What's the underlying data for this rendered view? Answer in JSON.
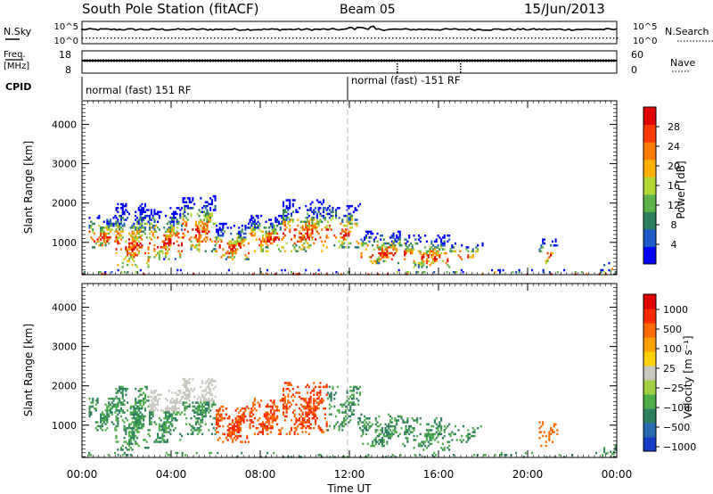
{
  "header": {
    "station": "South Pole Station (fitACF)",
    "beam": "Beam 05",
    "date": "15/Jun/2013"
  },
  "aux_panels": {
    "nsky_label": "N.Sky",
    "nsearch_label": "N.Search",
    "freq_label_line1": "Freq.",
    "freq_label_line2": "[MHz]",
    "nave_label": "Nave",
    "cpid_label": "CPID",
    "noise_ticks": [
      "10^5",
      "10^0"
    ],
    "noise_right_ticks": [
      "10^5",
      "10^0"
    ],
    "freq_ticks": [
      "18",
      "8"
    ],
    "nave_ticks": [
      "60",
      "0"
    ],
    "cpid_segments": [
      {
        "label": "normal (fast) 151 RF",
        "start_hour": 0
      },
      {
        "label": "normal (fast) -151 RF",
        "start_hour": 12
      }
    ]
  },
  "chart_data": [
    {
      "type": "heatmap",
      "name": "power",
      "ylabel": "Slant Range [km]",
      "ylim": [
        180,
        4600
      ],
      "yticks": [
        "1000",
        "2000",
        "3000",
        "4000"
      ],
      "ytick_values": [
        1000,
        2000,
        3000,
        4000
      ],
      "xlim": [
        0,
        24
      ],
      "colorbar": {
        "label": "Power [dB]",
        "ticks": [
          "4",
          "8",
          "12",
          "16",
          "20",
          "24",
          "28"
        ],
        "tick_values": [
          4,
          8,
          12,
          16,
          20,
          24,
          28
        ],
        "range": [
          0,
          32
        ],
        "colors": [
          "#0000ff",
          "#1e5ac8",
          "#2d7f5e",
          "#5fb34a",
          "#b3d936",
          "#ffb000",
          "#ff7a00",
          "#ff3a00",
          "#e00000"
        ]
      }
    },
    {
      "type": "heatmap",
      "name": "velocity",
      "ylabel": "Slant Range [km]",
      "ylim": [
        180,
        4600
      ],
      "yticks": [
        "1000",
        "2000",
        "3000",
        "4000"
      ],
      "ytick_values": [
        1000,
        2000,
        3000,
        4000
      ],
      "xlim": [
        0,
        24
      ],
      "colorbar": {
        "label": "Velocity [m s⁻¹]",
        "ticks": [
          "1000",
          "500",
          "100",
          "25",
          "−25",
          "−100",
          "−500",
          "−1000"
        ],
        "colors": [
          "#1a3ac8",
          "#2a6ab0",
          "#2d7f5e",
          "#4fae4a",
          "#a0d040",
          "#c8c8c0",
          "#ffd000",
          "#ffa000",
          "#ff6a00",
          "#ff2a00",
          "#e00000"
        ]
      }
    }
  ],
  "xaxis": {
    "label": "Time UT",
    "ticks": [
      "00:00",
      "04:00",
      "08:00",
      "12:00",
      "16:00",
      "20:00",
      "00:00"
    ],
    "tick_hours": [
      0,
      4,
      8,
      12,
      16,
      20,
      24
    ]
  }
}
